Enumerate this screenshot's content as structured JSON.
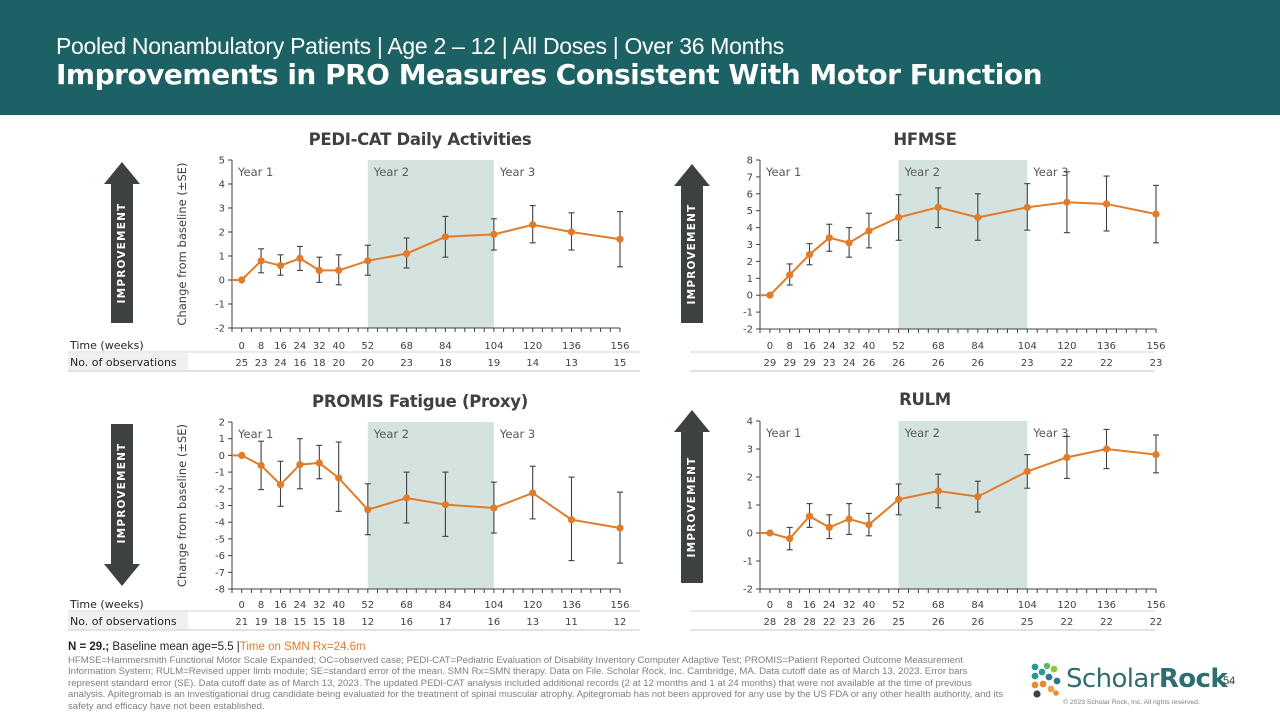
{
  "header": {
    "subtitle": "Pooled Nonambulatory Patients | Age 2 – 12 | All Doses | Over 36 Months",
    "title": "Improvements in PRO Measures Consistent With Motor Function"
  },
  "row_labels": {
    "time": "Time (weeks)",
    "observations": "No. of observations"
  },
  "improvement_label": "IMPROVEMENT",
  "year_labels": [
    "Year 1",
    "Year 2",
    "Year 3"
  ],
  "colors": {
    "header_bg": "#1c6163",
    "line": "#e07c2a",
    "shade": "#d4e3e0",
    "arrow": "#3d4241",
    "error_bar": "#404040"
  },
  "chart_data": [
    {
      "id": "pedicat",
      "type": "line",
      "title": "PEDI-CAT Daily Activities",
      "ylabel": "Change from baseline  (±SE)",
      "xlabel": "Time (weeks)",
      "ylim": [
        -2,
        5
      ],
      "yticks": [
        -2,
        -1,
        0,
        1,
        2,
        3,
        4,
        5
      ],
      "x": [
        0,
        8,
        16,
        24,
        32,
        40,
        52,
        68,
        84,
        104,
        120,
        136,
        156
      ],
      "values": [
        0,
        0.8,
        0.6,
        0.9,
        0.4,
        0.4,
        0.8,
        1.1,
        1.8,
        1.9,
        2.3,
        2.0,
        1.7
      ],
      "err_low": [
        0,
        0.3,
        0.2,
        0.4,
        -0.1,
        -0.2,
        0.2,
        0.5,
        0.95,
        1.25,
        1.55,
        1.25,
        0.55
      ],
      "err_high": [
        0,
        1.3,
        1.05,
        1.4,
        0.95,
        1.05,
        1.45,
        1.75,
        2.65,
        2.55,
        3.1,
        2.8,
        2.85
      ],
      "observations": [
        25,
        23,
        24,
        16,
        18,
        20,
        20,
        23,
        18,
        19,
        14,
        13,
        15
      ],
      "improvement_direction": "up",
      "shaded_region_weeks": [
        52,
        104
      ]
    },
    {
      "id": "hfmse",
      "type": "line",
      "title": "HFMSE",
      "ylabel": "",
      "xlabel": "Time (weeks)",
      "ylim": [
        -2,
        8
      ],
      "yticks": [
        -2,
        -1,
        0,
        1,
        2,
        3,
        4,
        5,
        6,
        7,
        8
      ],
      "x": [
        0,
        8,
        16,
        24,
        32,
        40,
        52,
        68,
        84,
        104,
        120,
        136,
        156
      ],
      "values": [
        0,
        1.2,
        2.4,
        3.4,
        3.1,
        3.8,
        4.6,
        5.2,
        4.6,
        5.2,
        5.5,
        5.4,
        4.8
      ],
      "err_low": [
        0,
        0.6,
        1.8,
        2.6,
        2.25,
        2.8,
        3.25,
        4.0,
        3.25,
        3.85,
        3.7,
        3.8,
        3.1
      ],
      "err_high": [
        0,
        1.85,
        3.05,
        4.2,
        4.0,
        4.85,
        5.95,
        6.35,
        6.0,
        6.6,
        7.3,
        7.05,
        6.5
      ],
      "observations": [
        29,
        29,
        29,
        23,
        24,
        26,
        26,
        26,
        26,
        23,
        22,
        22,
        23
      ],
      "improvement_direction": "up",
      "shaded_region_weeks": [
        52,
        104
      ]
    },
    {
      "id": "promis",
      "type": "line",
      "title": "PROMIS Fatigue (Proxy)",
      "ylabel": "Change from baseline  (±SE)",
      "xlabel": "Time (weeks)",
      "ylim": [
        -8,
        2
      ],
      "yticks": [
        -8,
        -7,
        -6,
        -5,
        -4,
        -3,
        -2,
        -1,
        0,
        1,
        2
      ],
      "x": [
        0,
        8,
        16,
        24,
        32,
        40,
        52,
        68,
        84,
        104,
        120,
        136,
        156
      ],
      "values": [
        0,
        -0.6,
        -1.75,
        -0.55,
        -0.45,
        -1.35,
        -3.25,
        -2.55,
        -2.95,
        -3.15,
        -2.25,
        -3.85,
        -4.35
      ],
      "err_low": [
        0,
        -2.05,
        -3.05,
        -2.0,
        -1.4,
        -3.35,
        -4.75,
        -4.05,
        -4.85,
        -4.65,
        -3.8,
        -6.3,
        -6.45
      ],
      "err_high": [
        0,
        0.85,
        -0.35,
        1.0,
        0.6,
        0.8,
        -1.7,
        -1.0,
        -1.0,
        -1.6,
        -0.65,
        -1.3,
        -2.2
      ],
      "observations": [
        21,
        19,
        18,
        15,
        15,
        18,
        12,
        16,
        17,
        16,
        13,
        11,
        12
      ],
      "improvement_direction": "down",
      "shaded_region_weeks": [
        52,
        104
      ]
    },
    {
      "id": "rulm",
      "type": "line",
      "title": "RULM",
      "ylabel": "",
      "xlabel": "Time (weeks)",
      "ylim": [
        -2,
        4
      ],
      "yticks": [
        -2,
        -1,
        0,
        1,
        2,
        3,
        4
      ],
      "x": [
        0,
        8,
        16,
        24,
        32,
        40,
        52,
        68,
        84,
        104,
        120,
        136,
        156
      ],
      "values": [
        0,
        -0.2,
        0.6,
        0.2,
        0.5,
        0.3,
        1.2,
        1.5,
        1.3,
        2.2,
        2.7,
        3.0,
        2.8
      ],
      "err_low": [
        0,
        -0.6,
        0.2,
        -0.2,
        -0.05,
        -0.1,
        0.65,
        0.9,
        0.75,
        1.6,
        1.95,
        2.3,
        2.15
      ],
      "err_high": [
        0,
        0.2,
        1.05,
        0.65,
        1.05,
        0.7,
        1.75,
        2.1,
        1.85,
        2.8,
        3.45,
        3.7,
        3.5
      ],
      "observations": [
        28,
        28,
        28,
        22,
        23,
        26,
        25,
        26,
        26,
        25,
        22,
        22,
        22
      ],
      "improvement_direction": "up",
      "shaded_region_weeks": [
        52,
        104
      ]
    }
  ],
  "footer": {
    "n_label": "N = 29.;",
    "baseline_label": " Baseline mean age=5.5 |",
    "time_on_rx": "Time on SMN Rx=24.6m",
    "note": "HFMSE=Hammersmith Functional Motor Scale Expanded; OC=observed case; PEDI-CAT=Pediatric Evaluation of Disability Inventory Computer Adaptive Test; PROMIS=Patient Reported Outcome Measurement Information System; RULM=Revised upper limb module;  SE=standard error  of the mean. SMN Rx=SMN therapy. Data on File.  Scholar Rock, Inc. Cambridge, MA. Data cutoff date as of March 13, 2023. Error bars represent standard error (SE). Data cutoff date as of March 13, 2023. The updated PEDI-CAT analysis included additional records (2 at 12 months and 1 at 24 months) that were not available at the time of previous analysis. Apitegromab is an investigational drug candidate being evaluated for the treatment of spinal muscular atrophy. Apitegromab has not been approved for any use by the US FDA or any other health authority, and its safety and efficacy have not been established."
  },
  "logo": {
    "text_regular": "Scholar",
    "text_bold": "Rock",
    "trademark": "™",
    "copyright": "© 2023 Scholar Rock, Inc. All rights reserved."
  },
  "page_number": "54"
}
